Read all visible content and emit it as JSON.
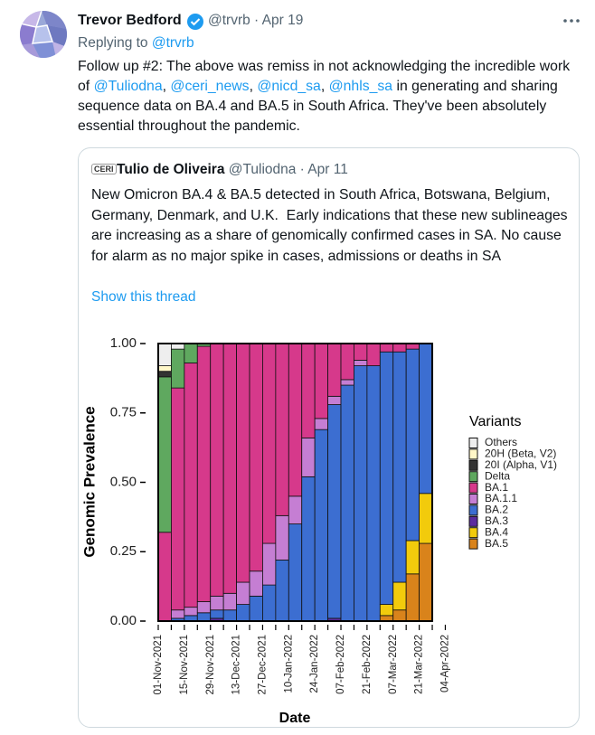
{
  "tweet": {
    "name": "Trevor Bedford",
    "handle": "@trvrb",
    "date": "Apr 19",
    "replying_to": [
      "Replying to ",
      "@trvrb"
    ],
    "body": [
      "Follow up #2: The above was remiss in not acknowledging the incredible work of ",
      "@Tuliodna",
      ", ",
      "@ceri_news",
      ", ",
      "@nicd_sa",
      ", ",
      "@nhls_sa",
      " in generating and sharing sequence data on BA.4 and BA.5 in South Africa. They've been absolutely essential throughout the pandemic."
    ]
  },
  "quote": {
    "logo": "CERI",
    "name": "Tulio de Oliveira",
    "handle": "@Tuliodna",
    "date": "Apr 11",
    "text": "New Omicron BA.4 & BA.5 detected in South Africa, Botswana, Belgium, Germany, Denmark, and U.K.  Early indications that these new sublineages are increasing as a share of genomically confirmed cases in SA. No cause for alarm as no major spike in cases, admissions or deaths in SA",
    "show_thread": "Show this thread"
  },
  "chart_data": {
    "type": "stacked_bar",
    "y_label": "Genomic Prevalence",
    "x_label": "Date",
    "legend_title": "Variants",
    "categories": [
      "01-Nov-2021",
      null,
      "15-Nov-2021",
      null,
      "29-Nov-2021",
      null,
      "13-Dec-2021",
      null,
      "27-Dec-2021",
      null,
      "10-Jan-2022",
      null,
      "24-Jan-2022",
      null,
      "07-Feb-2022",
      null,
      "21-Feb-2022",
      null,
      "07-Mar-2022",
      null,
      "21-Mar-2022",
      null,
      "04-Apr-2022"
    ],
    "ylim": [
      0,
      1
    ],
    "yticks": [
      {
        "value": 0,
        "label": "0.00"
      },
      {
        "value": 0.25,
        "label": "0.25"
      },
      {
        "value": 0.5,
        "label": "0.50"
      },
      {
        "value": 0.75,
        "label": "0.75"
      },
      {
        "value": 1,
        "label": "1.00"
      }
    ],
    "series": [
      {
        "name": "Others",
        "color": "#eeeeee",
        "values": [
          0.08,
          0.02,
          0,
          0,
          0,
          0,
          0,
          0,
          0,
          0,
          0,
          0,
          0,
          0,
          0,
          0,
          0,
          0,
          0,
          0,
          0,
          null,
          null
        ]
      },
      {
        "name": "20H (Beta, V2)",
        "color": "#fff7c8",
        "values": [
          0.02,
          0,
          0,
          0,
          0,
          0,
          0,
          0,
          0,
          0,
          0,
          0,
          0,
          0,
          0,
          0,
          0,
          0,
          0,
          0,
          0,
          null,
          null
        ]
      },
      {
        "name": "20I (Alpha, V1)",
        "color": "#333333",
        "values": [
          0.02,
          0,
          0,
          0,
          0,
          0,
          0,
          0,
          0,
          0,
          0,
          0,
          0,
          0,
          0,
          0,
          0,
          0,
          0,
          0,
          0,
          null,
          null
        ]
      },
      {
        "name": "Delta",
        "color": "#5fa85f",
        "values": [
          0.56,
          0.14,
          0.07,
          0.01,
          0,
          0,
          0,
          0,
          0,
          0,
          0,
          0,
          0,
          0,
          0,
          0,
          0,
          0,
          0,
          0,
          0,
          null,
          null
        ]
      },
      {
        "name": "BA.1",
        "color": "#d6398b",
        "values": [
          0.32,
          0.8,
          0.88,
          0.92,
          0.91,
          0.9,
          0.86,
          0.82,
          0.72,
          0.62,
          0.55,
          0.34,
          0.27,
          0.19,
          0.13,
          0.06,
          0.08,
          0.03,
          0.03,
          0.02,
          0,
          null,
          null
        ]
      },
      {
        "name": "BA.1.1",
        "color": "#c57ed3",
        "values": [
          0,
          0.03,
          0.03,
          0.04,
          0.05,
          0.06,
          0.08,
          0.09,
          0.15,
          0.16,
          0.1,
          0.14,
          0.04,
          0.03,
          0.02,
          0.02,
          0,
          0,
          0,
          0,
          0,
          null,
          null
        ]
      },
      {
        "name": "BA.2",
        "color": "#3c6ed1",
        "values": [
          0,
          0.01,
          0.02,
          0.03,
          0.03,
          0.04,
          0.06,
          0.09,
          0.13,
          0.22,
          0.35,
          0.52,
          0.69,
          0.77,
          0.85,
          0.92,
          0.92,
          0.91,
          0.83,
          0.69,
          0.54,
          null,
          null
        ]
      },
      {
        "name": "BA.3",
        "color": "#5b2c9e",
        "values": [
          0,
          0,
          0,
          0,
          0.01,
          0,
          0,
          0,
          0,
          0,
          0,
          0,
          0,
          0.01,
          0,
          0,
          0,
          0,
          0,
          0,
          0,
          null,
          null
        ]
      },
      {
        "name": "BA.4",
        "color": "#f2cb0c",
        "values": [
          0,
          0,
          0,
          0,
          0,
          0,
          0,
          0,
          0,
          0,
          0,
          0,
          0,
          0,
          0,
          0,
          0,
          0.04,
          0.1,
          0.12,
          0.18,
          null,
          null
        ]
      },
      {
        "name": "BA.5",
        "color": "#d9831b",
        "values": [
          0,
          0,
          0,
          0,
          0,
          0,
          0,
          0,
          0,
          0,
          0,
          0,
          0,
          0,
          0,
          0,
          0,
          0.02,
          0.04,
          0.17,
          0.28,
          null,
          null
        ]
      }
    ]
  }
}
